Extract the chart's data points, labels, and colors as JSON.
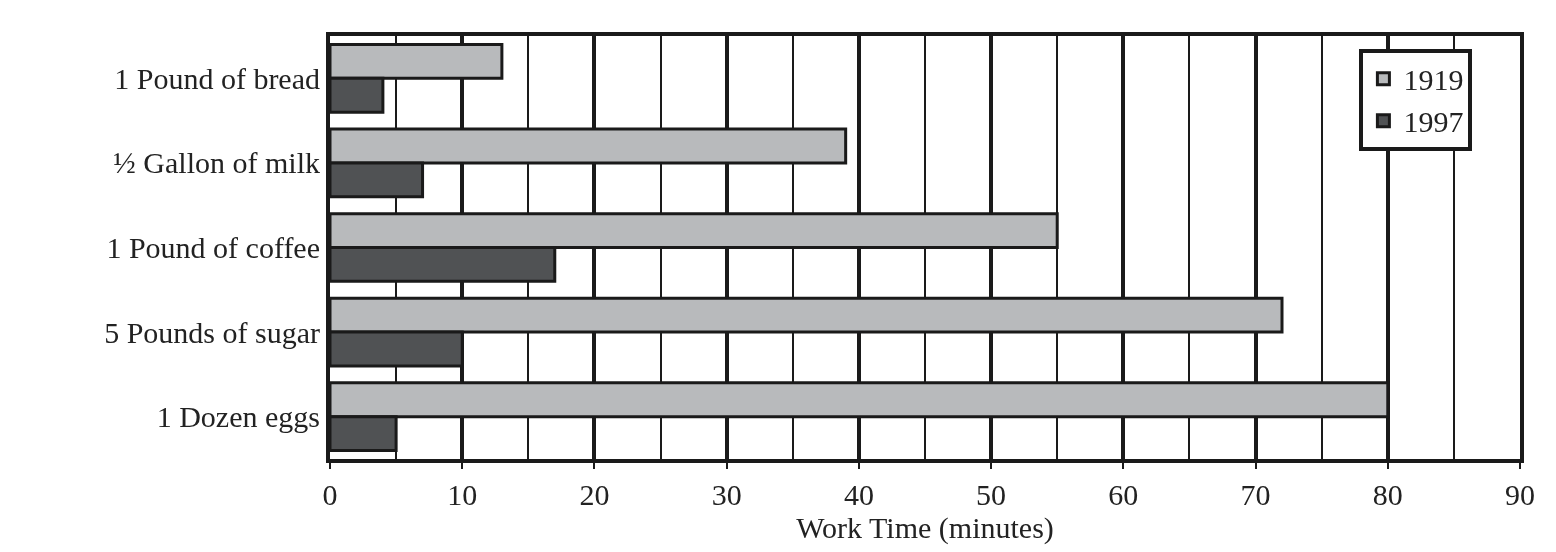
{
  "chart_data": {
    "type": "bar",
    "orientation": "horizontal",
    "xlabel": "Work Time (minutes)",
    "categories": [
      "1 Pound of bread",
      "½ Gallon of milk",
      "1 Pound of coffee",
      "5 Pounds of sugar",
      "1 Dozen eggs"
    ],
    "series": [
      {
        "name": "1919",
        "color": "#b8babc",
        "values": [
          13,
          39,
          55,
          72,
          80
        ]
      },
      {
        "name": "1997",
        "color": "#505254",
        "values": [
          4,
          7,
          17,
          10,
          5
        ]
      }
    ],
    "xlim": [
      0,
      90
    ],
    "xticks": [
      0,
      {
        "value": 5,
        "label": null
      },
      10,
      {
        "value": 15,
        "label": null
      },
      20,
      {
        "value": 25,
        "label": null
      },
      30,
      {
        "value": 35,
        "label": null
      },
      40,
      {
        "value": 45,
        "label": null
      },
      50,
      {
        "value": 55,
        "label": null
      },
      60,
      {
        "value": 65,
        "label": null
      },
      70,
      {
        "value": 75,
        "label": null
      },
      80,
      {
        "value": 85,
        "label": null
      },
      90
    ],
    "grid": "x",
    "legend": "top right"
  }
}
